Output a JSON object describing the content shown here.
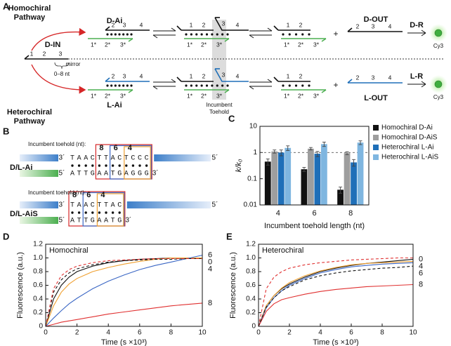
{
  "panel_a": {
    "label": "A",
    "homochiral": [
      "Homochiral",
      "Pathway"
    ],
    "heterochiral": [
      "Heterochiral",
      "Pathway"
    ],
    "input": "D-IN",
    "mirror": "mirror",
    "toehold_range": "0–8 nt",
    "homo_complex": "D-Ai",
    "hetero_complex": "L-Ai",
    "plus": "+",
    "homo_output": "D-OUT",
    "hetero_output": "L-OUT",
    "homo_reporter": "D-R",
    "hetero_reporter": "L-R",
    "fluorophore": "Cy3",
    "incumbent": [
      "Incumbent",
      "Toehold"
    ],
    "domains": [
      "1",
      "2",
      "3",
      "4"
    ],
    "complements": [
      "1*",
      "2*",
      "3*"
    ]
  },
  "panel_b": {
    "label": "B",
    "toehold_caption": "Incumbent toehold (nt):",
    "box_labels": [
      "8",
      "6",
      "4"
    ],
    "prime3": "3´",
    "prime5": "5´",
    "full": {
      "name": "D/L-Ai",
      "top": "TAACTTACTCCC",
      "bottom": "ATTGAATGAGGG"
    },
    "short": {
      "name": "D/L-AiS",
      "top": "TAACTTAC",
      "bottom": "ATTGAATG"
    }
  },
  "chart_data": [
    {
      "type": "bar",
      "label": "C",
      "ylabel": "k/k₀",
      "xlabel": "Incumbent toehold length (nt)",
      "categories": [
        "4",
        "6",
        "8"
      ],
      "category_colors": [
        "#f0a030",
        "#3a66c4",
        "#e03030"
      ],
      "log_y": true,
      "ylim": [
        0.01,
        10
      ],
      "yticks": [
        0.01,
        0.1,
        1,
        10
      ],
      "reference_line": 1,
      "legend": "right",
      "series": [
        {
          "name": "Homochiral D-Ai",
          "color": "#111111",
          "values": [
            0.45,
            0.23,
            0.038
          ],
          "errors": [
            0.12,
            0.04,
            0.01
          ]
        },
        {
          "name": "Homochiral D-AiS",
          "color": "#9e9e9e",
          "values": [
            1.1,
            1.4,
            0.95
          ],
          "errors": [
            0.15,
            0.15,
            0.12
          ]
        },
        {
          "name": "Heterochiral L-Ai",
          "color": "#1f6fb8",
          "values": [
            1.0,
            0.9,
            0.42
          ],
          "errors": [
            0.25,
            0.2,
            0.12
          ]
        },
        {
          "name": "Heterochiral L-AiS",
          "color": "#7fb6e0",
          "values": [
            1.5,
            2.1,
            2.4
          ],
          "errors": [
            0.3,
            0.4,
            0.4
          ]
        }
      ]
    },
    {
      "type": "line",
      "label": "D",
      "title": "Homochiral",
      "xlabel": "Time (s ×10³)",
      "ylabel": "Fluorescence (a.u.)",
      "x": [
        0,
        0.5,
        1,
        1.5,
        2,
        3,
        4,
        5,
        6,
        7,
        8,
        9,
        10
      ],
      "xlim": [
        0,
        10
      ],
      "xticks": [
        0,
        2,
        4,
        6,
        8,
        10
      ],
      "ylim": [
        0,
        1.2
      ],
      "yticks": [
        0,
        0.2,
        0.4,
        0.6,
        0.8,
        {
          "value": 1,
          "label": "1.0"
        },
        1.2
      ],
      "series": [
        {
          "name": "0",
          "color": "#111111",
          "values": [
            0,
            0.4,
            0.6,
            0.72,
            0.8,
            0.88,
            0.93,
            0.96,
            0.98,
            0.99,
            1.0,
            1.0,
            1.0
          ]
        },
        {
          "name": "4",
          "color": "#f0a030",
          "values": [
            0,
            0.3,
            0.5,
            0.62,
            0.7,
            0.8,
            0.86,
            0.91,
            0.95,
            0.98,
            1.0,
            1.0,
            1.0
          ]
        },
        {
          "name": "6",
          "color": "#3a66c4",
          "values": [
            0,
            0.12,
            0.23,
            0.33,
            0.41,
            0.55,
            0.66,
            0.75,
            0.83,
            0.89,
            0.94,
            0.99,
            1.04
          ]
        },
        {
          "name": "8",
          "color": "#e03030",
          "values": [
            0,
            0.03,
            0.06,
            0.08,
            0.1,
            0.14,
            0.18,
            0.21,
            0.24,
            0.27,
            0.3,
            0.32,
            0.34
          ]
        },
        {
          "color": "#111111",
          "dash": true,
          "values": [
            0,
            0.5,
            0.68,
            0.78,
            0.84,
            0.9,
            0.94,
            0.96,
            0.97,
            0.98,
            0.98,
            0.99,
            0.99
          ]
        },
        {
          "color": "#e03030",
          "dash": true,
          "values": [
            0,
            0.55,
            0.74,
            0.83,
            0.88,
            0.93,
            0.96,
            0.97,
            0.98,
            0.99,
            0.99,
            0.99,
            0.99
          ]
        }
      ]
    },
    {
      "type": "line",
      "label": "E",
      "title": "Heterochiral",
      "xlabel": "Time (s ×10³)",
      "ylabel": "Fluorescence (a.u.)",
      "x": [
        0,
        0.5,
        1,
        1.5,
        2,
        3,
        4,
        5,
        6,
        7,
        8,
        9,
        10
      ],
      "xlim": [
        0,
        10
      ],
      "xticks": [
        0,
        2,
        4,
        6,
        8,
        10
      ],
      "ylim": [
        0,
        1.2
      ],
      "yticks": [
        0,
        0.2,
        0.4,
        0.6,
        0.8,
        {
          "value": 1,
          "label": "1.0"
        },
        1.2
      ],
      "series": [
        {
          "name": "0",
          "color": "#111111",
          "values": [
            0,
            0.3,
            0.45,
            0.55,
            0.62,
            0.72,
            0.8,
            0.85,
            0.89,
            0.92,
            0.94,
            0.96,
            0.98
          ]
        },
        {
          "name": "4",
          "color": "#f0a030",
          "values": [
            0,
            0.3,
            0.45,
            0.56,
            0.64,
            0.74,
            0.81,
            0.86,
            0.9,
            0.92,
            0.93,
            0.94,
            0.95
          ]
        },
        {
          "name": "6",
          "color": "#3a66c4",
          "values": [
            0,
            0.27,
            0.42,
            0.52,
            0.6,
            0.7,
            0.78,
            0.83,
            0.87,
            0.89,
            0.91,
            0.92,
            0.93
          ]
        },
        {
          "name": "8",
          "color": "#e03030",
          "values": [
            0,
            0.22,
            0.33,
            0.39,
            0.42,
            0.47,
            0.51,
            0.54,
            0.56,
            0.58,
            0.59,
            0.6,
            0.61
          ]
        },
        {
          "color": "#111111",
          "dash": true,
          "values": [
            0,
            0.28,
            0.42,
            0.52,
            0.58,
            0.68,
            0.74,
            0.78,
            0.81,
            0.83,
            0.85,
            0.86,
            0.88
          ]
        },
        {
          "color": "#e03030",
          "dash": true,
          "values": [
            0,
            0.55,
            0.72,
            0.8,
            0.85,
            0.9,
            0.93,
            0.95,
            0.97,
            0.98,
            0.99,
            1.0,
            1.0
          ]
        }
      ]
    }
  ]
}
